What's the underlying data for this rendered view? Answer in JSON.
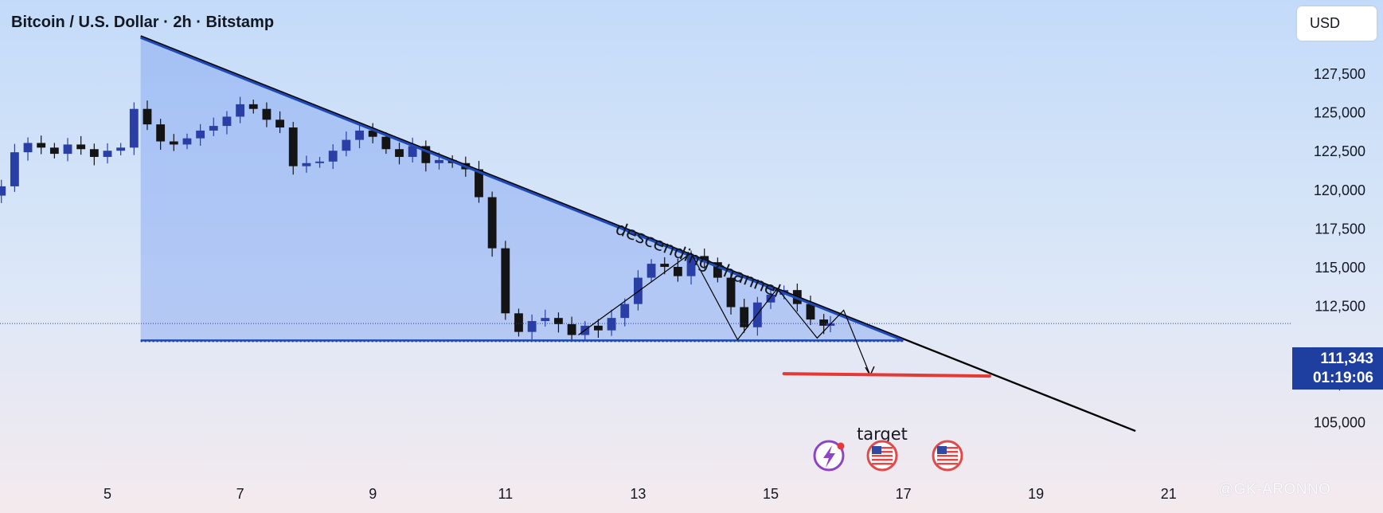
{
  "header": {
    "title": "Bitcoin / U.S. Dollar · 2h · Bitstamp",
    "currency_button": "USD"
  },
  "price_tag": {
    "price": "111,343",
    "countdown": "01:19:06"
  },
  "annotations": {
    "channel_label": "descending channel",
    "target_label": "target"
  },
  "icons": [
    "lightning-event-icon",
    "us-flag-icon",
    "us-flag-icon"
  ],
  "watermark": "@GK-ARONNO",
  "colors": {
    "bull_candle": "#2a3fa6",
    "bear_candle": "#141414",
    "channel_line": "#1f49b5",
    "trend_line": "#000000",
    "target_line": "#e53935",
    "price_tag": "#1e3fa0",
    "triangle_fill": "#6e96f0"
  },
  "chart_data": {
    "type": "candlestick",
    "title": "Bitcoin / U.S. Dollar · 2h · Bitstamp",
    "x_tick_labels": [
      "5",
      "7",
      "9",
      "11",
      "13",
      "15",
      "17",
      "19",
      "21"
    ],
    "y_tick_labels": [
      "127,500",
      "125,000",
      "122,500",
      "120,000",
      "117,500",
      "115,000",
      "112,500",
      "107,500",
      "105,000"
    ],
    "ylim": [
      104500,
      130000
    ],
    "xlim": [
      3.2,
      22.6
    ],
    "price_axis_side": "right",
    "grid": false,
    "current_price": 111343,
    "series_close": [
      [
        3.2,
        119600
      ],
      [
        3.4,
        120200
      ],
      [
        3.6,
        122400
      ],
      [
        3.8,
        123000
      ],
      [
        4.0,
        122700
      ],
      [
        4.2,
        122300
      ],
      [
        4.4,
        122900
      ],
      [
        4.6,
        122600
      ],
      [
        4.8,
        122100
      ],
      [
        5.0,
        122500
      ],
      [
        5.2,
        122700
      ],
      [
        5.4,
        125200
      ],
      [
        5.6,
        124200
      ],
      [
        5.8,
        123100
      ],
      [
        6.0,
        122900
      ],
      [
        6.2,
        123300
      ],
      [
        6.4,
        123800
      ],
      [
        6.6,
        124100
      ],
      [
        6.8,
        124700
      ],
      [
        7.0,
        125500
      ],
      [
        7.2,
        125200
      ],
      [
        7.4,
        124500
      ],
      [
        7.6,
        124000
      ],
      [
        7.8,
        121500
      ],
      [
        8.0,
        121700
      ],
      [
        8.2,
        121800
      ],
      [
        8.4,
        122500
      ],
      [
        8.6,
        123200
      ],
      [
        8.8,
        123800
      ],
      [
        9.0,
        123400
      ],
      [
        9.2,
        122600
      ],
      [
        9.4,
        122100
      ],
      [
        9.6,
        122800
      ],
      [
        9.8,
        121700
      ],
      [
        10.0,
        121900
      ],
      [
        10.2,
        121700
      ],
      [
        10.4,
        121300
      ],
      [
        10.6,
        119500
      ],
      [
        10.8,
        116200
      ],
      [
        11.0,
        112000
      ],
      [
        11.2,
        110800
      ],
      [
        11.4,
        111500
      ],
      [
        11.6,
        111700
      ],
      [
        11.8,
        111300
      ],
      [
        12.0,
        110600
      ],
      [
        12.2,
        111200
      ],
      [
        12.4,
        110900
      ],
      [
        12.6,
        111700
      ],
      [
        12.8,
        112600
      ],
      [
        13.0,
        114300
      ],
      [
        13.2,
        115200
      ],
      [
        13.4,
        115000
      ],
      [
        13.6,
        114400
      ],
      [
        13.8,
        115700
      ],
      [
        14.0,
        115300
      ],
      [
        14.2,
        114300
      ],
      [
        14.4,
        112400
      ],
      [
        14.6,
        111100
      ],
      [
        14.8,
        112700
      ],
      [
        15.0,
        113200
      ],
      [
        15.2,
        113500
      ],
      [
        15.4,
        112600
      ],
      [
        15.6,
        111600
      ],
      [
        15.8,
        111200
      ],
      [
        15.9,
        111343
      ]
    ],
    "lines": [
      {
        "name": "descending channel",
        "from": [
          5.5,
          129800
        ],
        "to": [
          17.0,
          110250
        ]
      },
      {
        "name": "trend line",
        "from": [
          5.5,
          129900
        ],
        "to": [
          20.5,
          104400
        ]
      },
      {
        "name": "support",
        "from": [
          5.5,
          110250
        ],
        "to": [
          17.0,
          110250
        ]
      },
      {
        "name": "target",
        "from": [
          15.2,
          108000
        ],
        "to": [
          18.3,
          108000
        ]
      }
    ],
    "projected_path": [
      [
        12.1,
        110600
      ],
      [
        13.8,
        115900
      ],
      [
        14.5,
        110300
      ],
      [
        15.1,
        113600
      ],
      [
        15.7,
        110400
      ],
      [
        16.1,
        112200
      ],
      [
        16.5,
        108000
      ]
    ]
  }
}
